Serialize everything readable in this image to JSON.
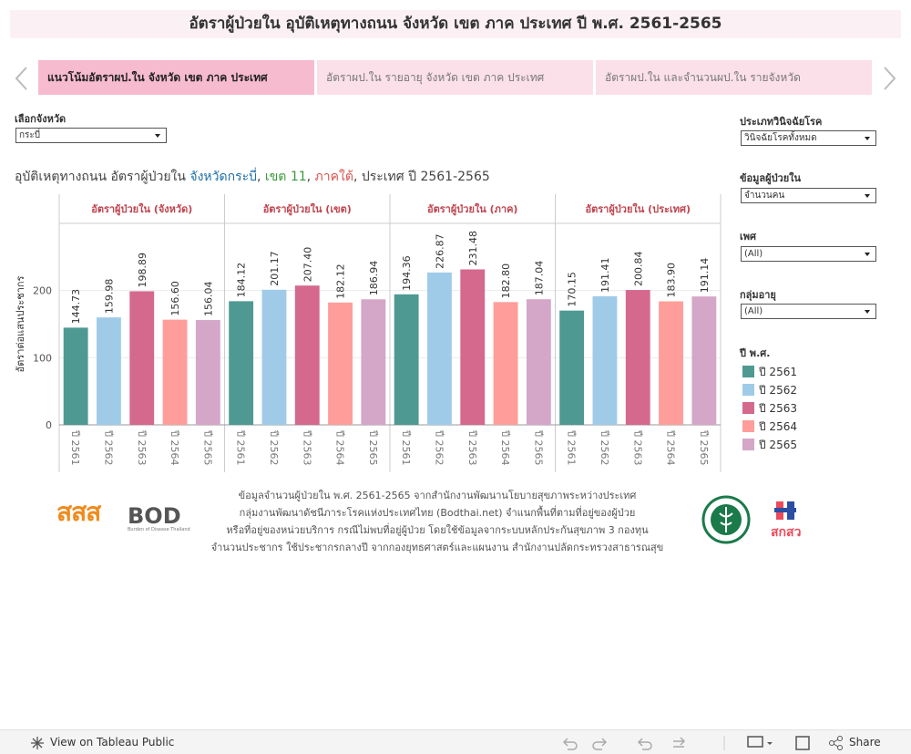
{
  "header": {
    "title": "อัตราผู้ป่วยใน อุบัติเหตุทางถนน จังหวัด เขต ภาค ประเทศ ปี พ.ศ. 2561-2565"
  },
  "tabs": [
    "แนวโน้มอัตราผป.ใน จังหวัด เขต ภาค ประเทศ",
    "อัตราผป.ใน รายอายุ จังหวัด เขต ภาค ประเทศ",
    "อัตราผป.ใน และจำนวนผป.ใน รายจังหวัด"
  ],
  "filters": [
    {
      "label": "เลือกจังหวัด",
      "value": "กระบี่"
    },
    {
      "label": "ประเภทวินิจฉัยโรค",
      "value": "วินิจฉัยโรคทั้งหมด"
    },
    {
      "label": "ข้อมูลผู้ป่วยใน",
      "value": "จำนวนคน"
    },
    {
      "label": "เพศ",
      "value": "(All)"
    },
    {
      "label": "กลุ่มอายุ",
      "value": "(All)"
    }
  ],
  "chart_data": {
    "type": "bar",
    "title": [
      {
        "text": "อุบัติเหตุทางถนน อัตราผู้ป่วยใน ",
        "color": "#444444"
      },
      {
        "text": "จังหวัดกระบี่",
        "color": "#1f6fa8"
      },
      {
        "text": ", ",
        "color": "#444444"
      },
      {
        "text": "เขต 11",
        "color": "#3a9a3a"
      },
      {
        "text": ", ",
        "color": "#444444"
      },
      {
        "text": "ภาคใต้",
        "color": "#d9534f"
      },
      {
        "text": ", ประเทศ ปี 2561-2565",
        "color": "#444444"
      }
    ],
    "panels": [
      "อัตราผู้ป่วยใน (จังหวัด)",
      "อัตราผู้ป่วยใน (เขต)",
      "อัตราผู้ป่วยใน (ภาค)",
      "อัตราผู้ป่วยใน (ประเทศ)"
    ],
    "y_label": "อัตราต่อแสนประชากร",
    "ylim": [
      0,
      300
    ],
    "yticks": [
      0,
      100,
      200
    ],
    "grid": true,
    "legend_title": "ปี พ.ศ.",
    "series": [
      {
        "name": "ปี 2561",
        "color": "#4e9a92",
        "values": [
          144.73,
          184.12,
          194.36,
          170.15
        ],
        "value_labels": [
          "144.73",
          "184.12",
          "194.36",
          "170.15"
        ]
      },
      {
        "name": "ปี 2562",
        "color": "#a0cbe8",
        "values": [
          159.98,
          201.17,
          226.87,
          191.41
        ],
        "value_labels": [
          "159.98",
          "201.17",
          "226.87",
          "191.41"
        ]
      },
      {
        "name": "ปี 2563",
        "color": "#d4698d",
        "values": [
          198.89,
          207.4,
          231.48,
          200.84
        ],
        "value_labels": [
          "198.89",
          "207.40",
          "231.48",
          "200.84"
        ]
      },
      {
        "name": "ปี 2564",
        "color": "#ff9d9a",
        "values": [
          156.6,
          182.12,
          182.8,
          183.9
        ],
        "value_labels": [
          "156.60",
          "182.12",
          "182.80",
          "183.90"
        ]
      },
      {
        "name": "ปี 2565",
        "color": "#d4a6c8",
        "values": [
          156.04,
          186.94,
          187.04,
          191.14
        ],
        "value_labels": [
          "156.04",
          "186.94",
          "187.04",
          "191.14"
        ]
      }
    ]
  },
  "footer": {
    "lines": [
      "ข้อมูลจำนวนผู้ป่วยใน พ.ศ. 2561-2565 จากสำนักงานพัฒนานโยบายสุขภาพระหว่างประเทศ",
      "กลุ่มงานพัฒนาดัชนีภาระโรคแห่งประเทศไทย (Bodthai.net) จำแนกพื้นที่ตามที่อยู่ของผู้ป่วย",
      "หรือที่อยู่ของหน่วยบริการ กรณีไม่พบที่อยู่ผู้ป่วย โดยใช้ข้อมูลจากระบบหลักประกันสุขภาพ 3 กองทุน",
      "จำนวนประชากร ใช้ประชากรกลางปี จากกองยุทธศาสตร์และแผนงาน สำนักงานปลัดกระทรวงสาธารณสุข"
    ],
    "logos": [
      "สสส",
      "BOD",
      "Burden of Disease Thailand",
      "สกสว"
    ]
  },
  "toolbar": {
    "view": "View on Tableau Public",
    "share": "Share"
  }
}
